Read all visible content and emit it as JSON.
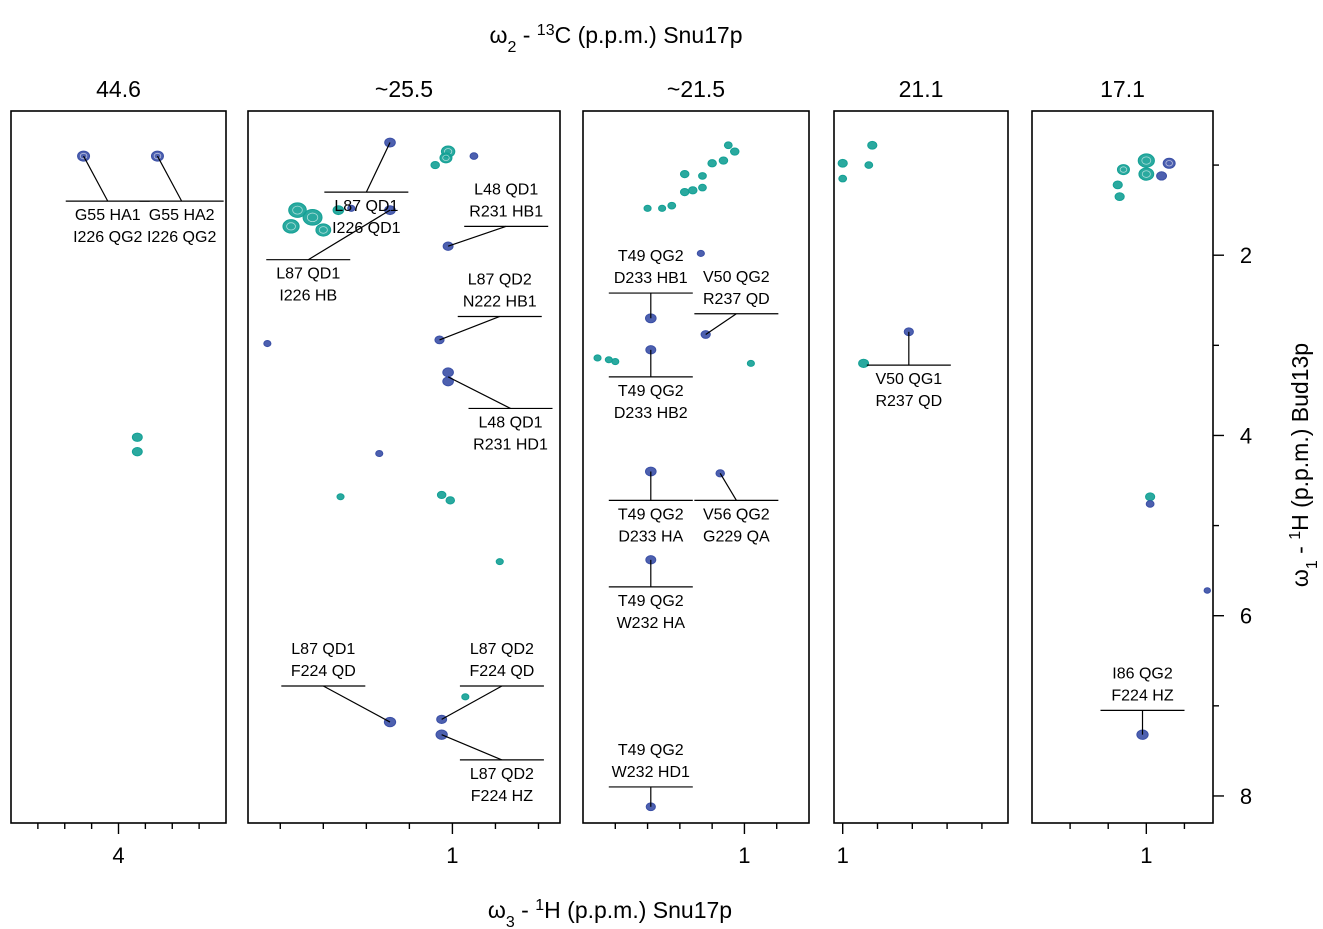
{
  "chart_data": {
    "type": "scatter",
    "top_axis_label": {
      "prefix": "ω",
      "sub": "2",
      "mid": " - ",
      "sup": "13",
      "rest": "C (p.p.m.) Snu17p"
    },
    "x_axis_label": {
      "prefix": "ω",
      "sub": "3",
      "mid": " - ",
      "sup": "1",
      "rest": "H  (p.p.m.) Snu17p"
    },
    "y_axis_label": {
      "prefix": "ω",
      "sub": "1",
      "mid": " - ",
      "sup": "1",
      "rest": "H  (p.p.m.) Bud13p"
    },
    "y_axis": {
      "range": [
        0.4,
        8.3
      ],
      "ticks": [
        2,
        4,
        6,
        8
      ],
      "tick_labels": [
        "2",
        "4",
        "6",
        "8"
      ],
      "inverted": true
    },
    "colors": {
      "blue": "#3a4fa6",
      "teal": "#13a095"
    },
    "panels": [
      {
        "title": "44.6",
        "x_range": [
          4.8,
          3.2
        ],
        "x_ticks_labeled": [
          {
            "v": 4.0,
            "label": "4"
          }
        ],
        "x_minor": [
          4.6,
          4.4,
          4.2,
          3.8,
          3.6,
          3.4
        ],
        "peaks": [
          {
            "x": 4.26,
            "y": 0.9,
            "color": "blue",
            "w": 1.0
          },
          {
            "x": 3.71,
            "y": 0.9,
            "color": "blue",
            "w": 1.0
          },
          {
            "x": 3.86,
            "y": 4.02,
            "color": "teal",
            "w": 0.7
          },
          {
            "x": 3.86,
            "y": 4.18,
            "color": "teal",
            "w": 0.7
          }
        ],
        "annotations": [
          {
            "lines": [
              "G55 HA1",
              "I226 QG2"
            ],
            "peak": [
              4.26,
              0.9
            ],
            "lx": 4.08,
            "ly": 1.4
          },
          {
            "lines": [
              "G55 HA2",
              "I226 QG2"
            ],
            "peak": [
              3.71,
              0.9
            ],
            "lx": 3.53,
            "ly": 1.4
          }
        ]
      },
      {
        "title": "~25.5",
        "x_range": [
          0.05,
          1.5
        ],
        "x_ticks_labeled": [
          {
            "v": 1.0,
            "label": "1"
          }
        ],
        "x_minor": [
          0.2,
          0.4,
          0.6,
          0.8,
          1.2,
          1.4
        ],
        "peaks": [
          {
            "x": 0.71,
            "y": 0.75,
            "color": "blue",
            "w": 0.8
          },
          {
            "x": 0.71,
            "y": 1.5,
            "color": "blue",
            "w": 0.8
          },
          {
            "x": 0.98,
            "y": 0.85,
            "color": "teal",
            "w": 1.2
          },
          {
            "x": 0.97,
            "y": 0.92,
            "color": "teal",
            "w": 1.0
          },
          {
            "x": 0.92,
            "y": 1.0,
            "color": "teal",
            "w": 0.5
          },
          {
            "x": 1.1,
            "y": 0.9,
            "color": "blue",
            "w": 0.4
          },
          {
            "x": 0.28,
            "y": 1.5,
            "color": "teal",
            "w": 1.8
          },
          {
            "x": 0.35,
            "y": 1.58,
            "color": "teal",
            "w": 2.0
          },
          {
            "x": 0.25,
            "y": 1.68,
            "color": "teal",
            "w": 1.6
          },
          {
            "x": 0.4,
            "y": 1.72,
            "color": "teal",
            "w": 1.4
          },
          {
            "x": 0.47,
            "y": 1.5,
            "color": "teal",
            "w": 0.8
          },
          {
            "x": 0.53,
            "y": 1.48,
            "color": "blue",
            "w": 0.3
          },
          {
            "x": 0.98,
            "y": 1.9,
            "color": "blue",
            "w": 0.7
          },
          {
            "x": 0.94,
            "y": 2.94,
            "color": "blue",
            "w": 0.6
          },
          {
            "x": 0.14,
            "y": 2.98,
            "color": "blue",
            "w": 0.3
          },
          {
            "x": 0.98,
            "y": 3.3,
            "color": "blue",
            "w": 0.8
          },
          {
            "x": 0.98,
            "y": 3.4,
            "color": "blue",
            "w": 0.8
          },
          {
            "x": 0.66,
            "y": 4.2,
            "color": "blue",
            "w": 0.3
          },
          {
            "x": 0.48,
            "y": 4.68,
            "color": "teal",
            "w": 0.3
          },
          {
            "x": 0.95,
            "y": 4.66,
            "color": "teal",
            "w": 0.5
          },
          {
            "x": 0.99,
            "y": 4.72,
            "color": "teal",
            "w": 0.5
          },
          {
            "x": 1.22,
            "y": 5.4,
            "color": "teal",
            "w": 0.3
          },
          {
            "x": 1.06,
            "y": 6.9,
            "color": "teal",
            "w": 0.3
          },
          {
            "x": 0.71,
            "y": 7.18,
            "color": "blue",
            "w": 0.9
          },
          {
            "x": 0.95,
            "y": 7.15,
            "color": "blue",
            "w": 0.7
          },
          {
            "x": 0.95,
            "y": 7.32,
            "color": "blue",
            "w": 0.9
          }
        ],
        "annotations": [
          {
            "lines": [
              "L87 QD1",
              "I226 QD1"
            ],
            "peak": [
              0.71,
              0.75
            ],
            "lx": 0.6,
            "ly": 1.3,
            "bar": "v"
          },
          {
            "lines": [
              "L87 QD1",
              "I226 HB"
            ],
            "peak": [
              0.71,
              1.5
            ],
            "lx": 0.33,
            "ly": 2.05
          },
          {
            "lines": [
              "L48 QD1",
              "R231 HB1"
            ],
            "peak": [
              0.98,
              1.9
            ],
            "lx": 1.25,
            "ly": 1.68
          },
          {
            "lines": [
              "L87 QD2",
              "N222 HB1"
            ],
            "peak": [
              0.94,
              2.94
            ],
            "lx": 1.22,
            "ly": 2.68
          },
          {
            "lines": [
              "L48 QD1",
              "R231 HD1"
            ],
            "peak": [
              0.98,
              3.35
            ],
            "lx": 1.27,
            "ly": 3.7
          },
          {
            "lines": [
              "L87 QD1",
              "F224 QD"
            ],
            "peak": [
              0.71,
              7.18
            ],
            "lx": 0.4,
            "ly": 6.78
          },
          {
            "lines": [
              "L87 QD2",
              "F224 QD"
            ],
            "peak": [
              0.95,
              7.15
            ],
            "lx": 1.23,
            "ly": 6.78
          },
          {
            "lines": [
              "L87 QD2",
              "F224 HZ"
            ],
            "peak": [
              0.95,
              7.32
            ],
            "lx": 1.23,
            "ly": 7.6
          }
        ]
      },
      {
        "title": "~21.5",
        "x_range": [
          0.0,
          1.4
        ],
        "x_ticks_labeled": [
          {
            "v": 1.0,
            "label": "1"
          }
        ],
        "x_minor": [
          0.2,
          0.4,
          0.6,
          0.8,
          1.2
        ],
        "peaks": [
          {
            "x": 0.94,
            "y": 0.85,
            "color": "teal",
            "w": 0.5
          },
          {
            "x": 0.9,
            "y": 0.78,
            "color": "teal",
            "w": 0.4
          },
          {
            "x": 0.87,
            "y": 0.95,
            "color": "teal",
            "w": 0.5
          },
          {
            "x": 0.8,
            "y": 0.98,
            "color": "teal",
            "w": 0.5
          },
          {
            "x": 0.74,
            "y": 1.12,
            "color": "teal",
            "w": 0.4
          },
          {
            "x": 0.74,
            "y": 1.25,
            "color": "teal",
            "w": 0.4
          },
          {
            "x": 0.63,
            "y": 1.1,
            "color": "teal",
            "w": 0.5
          },
          {
            "x": 0.63,
            "y": 1.3,
            "color": "teal",
            "w": 0.5
          },
          {
            "x": 0.68,
            "y": 1.28,
            "color": "teal",
            "w": 0.5
          },
          {
            "x": 0.55,
            "y": 1.45,
            "color": "teal",
            "w": 0.4
          },
          {
            "x": 0.4,
            "y": 1.48,
            "color": "teal",
            "w": 0.3
          },
          {
            "x": 0.49,
            "y": 1.48,
            "color": "teal",
            "w": 0.3
          },
          {
            "x": 0.73,
            "y": 1.98,
            "color": "blue",
            "w": 0.3
          },
          {
            "x": 0.42,
            "y": 2.7,
            "color": "blue",
            "w": 0.8
          },
          {
            "x": 0.76,
            "y": 2.88,
            "color": "blue",
            "w": 0.6
          },
          {
            "x": 0.42,
            "y": 3.05,
            "color": "blue",
            "w": 0.7
          },
          {
            "x": 0.09,
            "y": 3.14,
            "color": "teal",
            "w": 0.3
          },
          {
            "x": 0.16,
            "y": 3.16,
            "color": "teal",
            "w": 0.3
          },
          {
            "x": 0.2,
            "y": 3.18,
            "color": "teal",
            "w": 0.3
          },
          {
            "x": 1.04,
            "y": 3.2,
            "color": "teal",
            "w": 0.3
          },
          {
            "x": 0.42,
            "y": 4.4,
            "color": "blue",
            "w": 0.8
          },
          {
            "x": 0.85,
            "y": 4.42,
            "color": "blue",
            "w": 0.5
          },
          {
            "x": 0.42,
            "y": 5.38,
            "color": "blue",
            "w": 0.7
          },
          {
            "x": 0.42,
            "y": 8.12,
            "color": "blue",
            "w": 0.6
          }
        ],
        "annotations": [
          {
            "lines": [
              "T49 QG2",
              "D233 HB1"
            ],
            "peak": [
              0.42,
              2.7
            ],
            "lx": 0.42,
            "ly": 2.42
          },
          {
            "lines": [
              "V50 QG2",
              "R237 QD"
            ],
            "peak": [
              0.76,
              2.88
            ],
            "lx": 0.95,
            "ly": 2.65
          },
          {
            "lines": [
              "T49 QG2",
              "D233 HB2"
            ],
            "peak": [
              0.42,
              3.05
            ],
            "lx": 0.42,
            "ly": 3.35
          },
          {
            "lines": [
              "T49 QG2",
              "D233 HA"
            ],
            "peak": [
              0.42,
              4.4
            ],
            "lx": 0.42,
            "ly": 4.72
          },
          {
            "lines": [
              "V56 QG2",
              "G229 QA"
            ],
            "peak": [
              0.85,
              4.42
            ],
            "lx": 0.95,
            "ly": 4.72
          },
          {
            "lines": [
              "T49 QG2",
              "W232 HA"
            ],
            "peak": [
              0.42,
              5.38
            ],
            "lx": 0.42,
            "ly": 5.68
          },
          {
            "lines": [
              "T49 QG2",
              "W232 HD1"
            ],
            "peak": [
              0.42,
              8.12
            ],
            "lx": 0.42,
            "ly": 7.9
          }
        ]
      },
      {
        "title": "21.1",
        "x_range": [
          0.95,
          1.95
        ],
        "x_ticks_labeled": [
          {
            "v": 1.0,
            "label": "1"
          }
        ],
        "x_minor": [
          1.2,
          1.4,
          1.6,
          1.8
        ],
        "peaks": [
          {
            "x": 1.0,
            "y": 0.98,
            "color": "teal",
            "w": 0.6
          },
          {
            "x": 1.0,
            "y": 1.15,
            "color": "teal",
            "w": 0.4
          },
          {
            "x": 1.17,
            "y": 0.78,
            "color": "teal",
            "w": 0.6
          },
          {
            "x": 1.15,
            "y": 1.0,
            "color": "teal",
            "w": 0.4
          },
          {
            "x": 1.12,
            "y": 3.2,
            "color": "teal",
            "w": 0.7
          },
          {
            "x": 1.38,
            "y": 2.85,
            "color": "blue",
            "w": 0.6
          }
        ],
        "annotations": [
          {
            "lines": [
              "V50 QG1",
              "R237 QD"
            ],
            "peak": [
              1.38,
              2.85
            ],
            "lx": 1.38,
            "ly": 3.22
          }
        ]
      },
      {
        "title": "17.1",
        "x_range": [
          1.6,
          0.65
        ],
        "x_ticks_labeled": [
          {
            "v": 1.0,
            "label": "1"
          }
        ],
        "x_minor": [
          1.4,
          1.2,
          0.8
        ],
        "peaks": [
          {
            "x": 1.0,
            "y": 0.95,
            "color": "teal",
            "w": 1.6
          },
          {
            "x": 1.0,
            "y": 1.1,
            "color": "teal",
            "w": 1.4
          },
          {
            "x": 1.12,
            "y": 1.05,
            "color": "teal",
            "w": 1.0
          },
          {
            "x": 0.88,
            "y": 0.98,
            "color": "blue",
            "w": 1.0
          },
          {
            "x": 0.92,
            "y": 1.12,
            "color": "blue",
            "w": 0.7
          },
          {
            "x": 1.15,
            "y": 1.22,
            "color": "teal",
            "w": 0.6
          },
          {
            "x": 1.14,
            "y": 1.35,
            "color": "teal",
            "w": 0.6
          },
          {
            "x": 0.98,
            "y": 4.68,
            "color": "teal",
            "w": 0.6
          },
          {
            "x": 0.98,
            "y": 4.76,
            "color": "blue",
            "w": 0.4
          },
          {
            "x": 0.68,
            "y": 5.72,
            "color": "blue",
            "w": 0.2
          },
          {
            "x": 1.02,
            "y": 7.32,
            "color": "blue",
            "w": 0.9
          }
        ],
        "annotations": [
          {
            "lines": [
              "I86 QG2",
              "F224 HZ"
            ],
            "peak": [
              1.02,
              7.32
            ],
            "lx": 1.02,
            "ly": 7.05
          }
        ]
      }
    ]
  }
}
